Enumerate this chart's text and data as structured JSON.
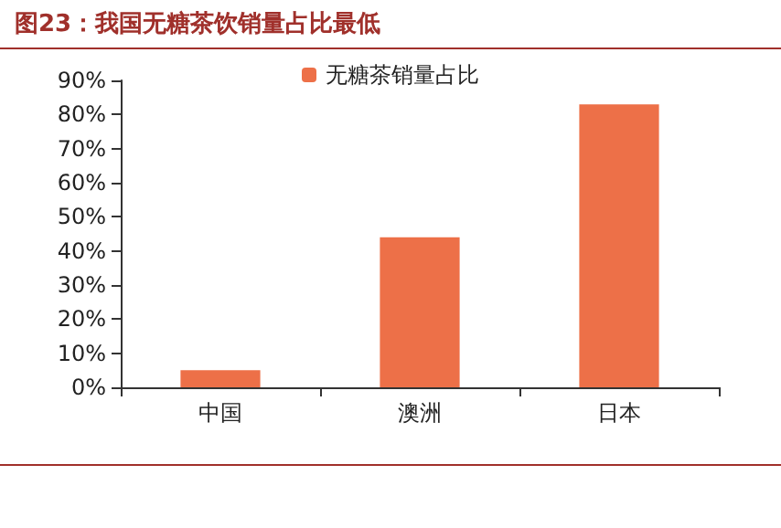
{
  "chart_data": {
    "type": "bar",
    "title": "图23：我国无糖茶饮销量占比最低",
    "categories": [
      "中国",
      "澳洲",
      "日本"
    ],
    "series": [
      {
        "name": "无糖茶销量占比",
        "color": "#ed7048",
        "values": [
          5,
          44,
          83
        ]
      }
    ],
    "ylim": [
      0,
      90
    ],
    "yticks": [
      {
        "value": 0,
        "label": "0%"
      },
      {
        "value": 10,
        "label": "10%"
      },
      {
        "value": 20,
        "label": "20%"
      },
      {
        "value": 30,
        "label": "30%"
      },
      {
        "value": 40,
        "label": "40%"
      },
      {
        "value": 50,
        "label": "50%"
      },
      {
        "value": 60,
        "label": "60%"
      },
      {
        "value": 70,
        "label": "70%"
      },
      {
        "value": 80,
        "label": "80%"
      },
      {
        "value": 90,
        "label": "90%"
      }
    ],
    "grid": false,
    "legend": "top"
  }
}
